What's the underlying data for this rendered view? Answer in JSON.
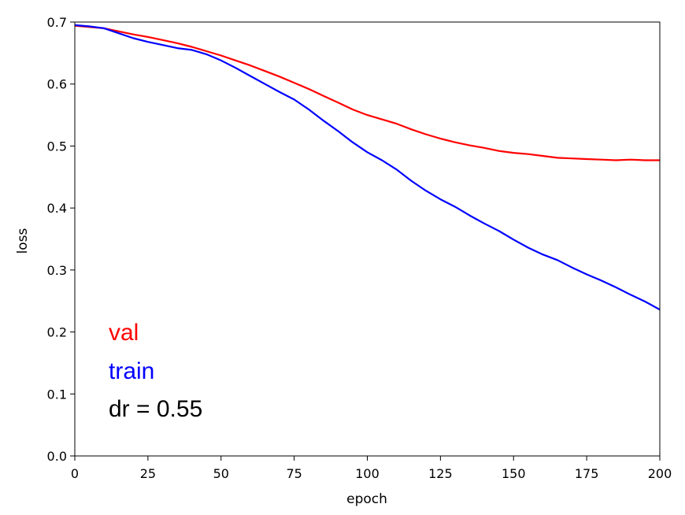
{
  "chart_data": {
    "type": "line",
    "title": "",
    "xlabel": "epoch",
    "ylabel": "loss",
    "xlim": [
      0,
      200
    ],
    "ylim": [
      0,
      0.7
    ],
    "xticks": [
      0,
      25,
      50,
      75,
      100,
      125,
      150,
      175,
      200
    ],
    "yticks": [
      0.0,
      0.1,
      0.2,
      0.3,
      0.4,
      0.5,
      0.6,
      0.7
    ],
    "xtick_labels": [
      "0",
      "25",
      "50",
      "75",
      "100",
      "125",
      "150",
      "175",
      "200"
    ],
    "ytick_labels": [
      "0.0",
      "0.1",
      "0.2",
      "0.3",
      "0.4",
      "0.5",
      "0.6",
      "0.7"
    ],
    "grid": false,
    "legend": "none",
    "series": [
      {
        "name": "val",
        "color": "#ff0000",
        "x": [
          0,
          5,
          10,
          15,
          20,
          25,
          30,
          35,
          40,
          45,
          50,
          55,
          60,
          65,
          70,
          75,
          80,
          85,
          90,
          95,
          100,
          105,
          110,
          115,
          120,
          125,
          130,
          135,
          140,
          145,
          150,
          155,
          160,
          165,
          170,
          175,
          180,
          185,
          190,
          195,
          200
        ],
        "y": [
          0.694,
          0.692,
          0.69,
          0.685,
          0.68,
          0.676,
          0.671,
          0.666,
          0.66,
          0.653,
          0.646,
          0.638,
          0.63,
          0.621,
          0.612,
          0.602,
          0.592,
          0.581,
          0.57,
          0.559,
          0.55,
          0.543,
          0.536,
          0.527,
          0.519,
          0.512,
          0.506,
          0.501,
          0.497,
          0.492,
          0.489,
          0.487,
          0.484,
          0.481,
          0.48,
          0.479,
          0.478,
          0.477,
          0.478,
          0.477,
          0.477
        ]
      },
      {
        "name": "train",
        "color": "#0000ff",
        "x": [
          0,
          5,
          10,
          15,
          20,
          25,
          30,
          35,
          40,
          45,
          50,
          55,
          60,
          65,
          70,
          75,
          80,
          85,
          90,
          95,
          100,
          105,
          110,
          115,
          120,
          125,
          130,
          135,
          140,
          145,
          150,
          155,
          160,
          165,
          170,
          175,
          180,
          185,
          190,
          195,
          200
        ],
        "y": [
          0.695,
          0.693,
          0.69,
          0.682,
          0.674,
          0.668,
          0.663,
          0.658,
          0.655,
          0.648,
          0.638,
          0.626,
          0.613,
          0.6,
          0.587,
          0.575,
          0.559,
          0.541,
          0.524,
          0.506,
          0.49,
          0.477,
          0.462,
          0.444,
          0.428,
          0.414,
          0.402,
          0.388,
          0.375,
          0.363,
          0.349,
          0.336,
          0.325,
          0.316,
          0.304,
          0.293,
          0.283,
          0.272,
          0.26,
          0.249,
          0.236
        ]
      }
    ],
    "annotations": [
      {
        "text": "val",
        "color": "#ff0000"
      },
      {
        "text": "train",
        "color": "#0000ff"
      },
      {
        "text": "dr = 0.55",
        "color": "#000000"
      }
    ]
  }
}
